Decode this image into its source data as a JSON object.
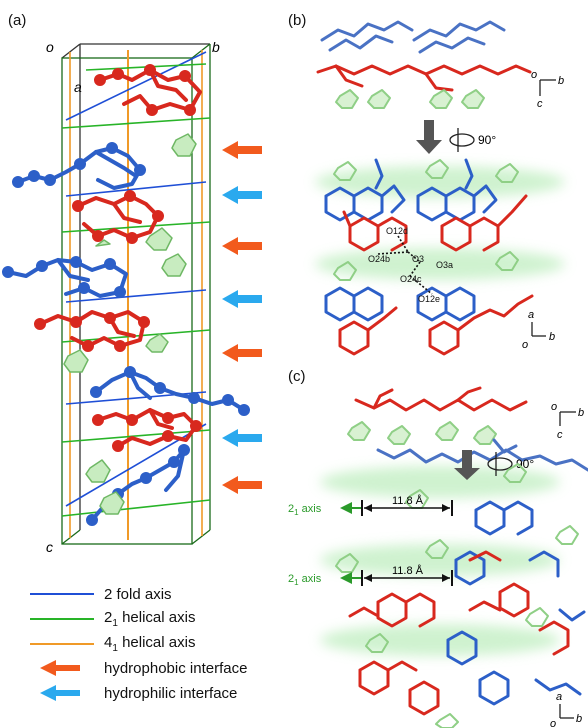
{
  "panels": {
    "a": {
      "label": "(a)",
      "axes": {
        "o": "o",
        "b": "b",
        "a": "a",
        "c": "c"
      }
    },
    "b": {
      "label": "(b)",
      "rotation": "90°",
      "atoms": [
        "O12d",
        "O24b",
        "O3",
        "O3a",
        "O24c",
        "O12e"
      ],
      "axes_top": {
        "o": "o",
        "b": "b",
        "c": "c"
      },
      "axes_bottom": {
        "a": "a",
        "o": "o",
        "b": "b"
      }
    },
    "c": {
      "label": "(c)",
      "rotation": "90°",
      "screw_labels": [
        {
          "text": "2",
          "sub": "1",
          "rest": " axis"
        },
        {
          "text": "2",
          "sub": "1",
          "rest": " axis"
        }
      ],
      "distances": [
        "11.8 Å",
        "11.8 Å"
      ],
      "axes_top": {
        "o": "o",
        "b": "b",
        "c": "c"
      },
      "axes_bottom": {
        "a": "a",
        "o": "o",
        "b": "b"
      }
    }
  },
  "legend": [
    {
      "kind": "line",
      "color": "#1f4fd6",
      "text": "2 fold axis",
      "sub": "",
      "after": ""
    },
    {
      "kind": "line",
      "color": "#28b428",
      "text": "2",
      "sub": "1",
      "after": " helical axis"
    },
    {
      "kind": "line",
      "color": "#f09a28",
      "text": "4",
      "sub": "1",
      "after": " helical axis"
    },
    {
      "kind": "arrow",
      "color": "#f25a1d",
      "text": "hydrophobic interface",
      "sub": "",
      "after": ""
    },
    {
      "kind": "arrow",
      "color": "#2aa9ee",
      "text": "hydrophilic interface",
      "sub": "",
      "after": ""
    }
  ],
  "colors": {
    "red": "#d8281e",
    "blue": "#2c5fc8",
    "green": "#8fcf86",
    "greenband": "#bfeec0",
    "orange_arrow": "#f25a1d",
    "cyan_arrow": "#2aa9ee",
    "gray_arrow": "#555555",
    "axis_green": "#28a828",
    "axis_blue": "#1f4fd6",
    "axis_orange": "#f09a28"
  }
}
